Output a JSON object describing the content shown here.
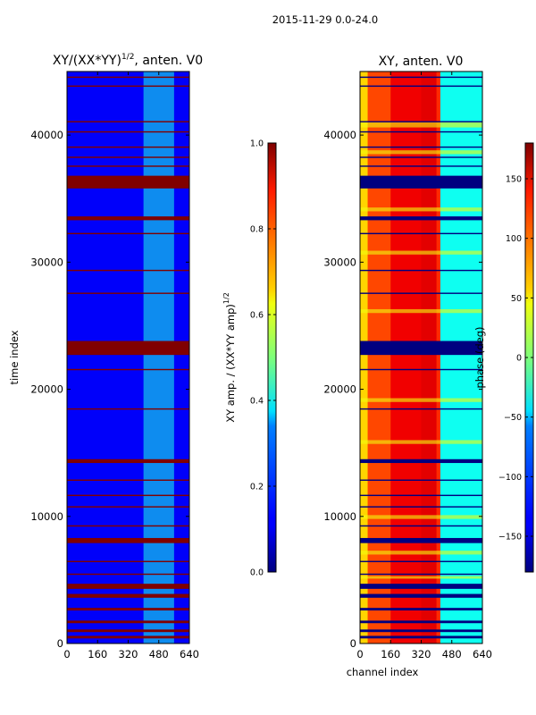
{
  "figure": {
    "suptitle": "2015-11-29 0.0-24.0"
  },
  "chart_data": [
    {
      "type": "heatmap",
      "title": "XY/(XX*YY)^{1/2}, anten. V0",
      "title_main": "XY/(XX*YY)",
      "title_sup": "1/2",
      "title_rest": ", anten. V0",
      "xlabel": "",
      "ylabel": "time index",
      "xlim": [
        0,
        640
      ],
      "ylim": [
        0,
        45000
      ],
      "xticks": [
        0,
        160,
        320,
        480,
        640
      ],
      "yticks": [
        0,
        10000,
        20000,
        30000,
        40000
      ],
      "colormap": "jet",
      "colorbar": {
        "label": "XY amp. / (XX*YY amp)^{1/2}",
        "label_main": "XY amp. / (XX*YY amp)",
        "label_sup": "1/2",
        "vmin": 0.0,
        "vmax": 1.0,
        "ticks": [
          0.0,
          0.2,
          0.4,
          0.6,
          0.8,
          1.0
        ],
        "tick_labels": [
          "0.0",
          "0.2",
          "0.4",
          "0.6",
          "0.8",
          "1.0"
        ]
      },
      "background_value": 0.12,
      "bright_band_channels": [
        400,
        560
      ],
      "bright_band_value": 0.4,
      "flagged_rows_value": 1.0,
      "flagged_time_ranges": [
        [
          35800,
          36800
        ],
        [
          33300,
          33600
        ],
        [
          22700,
          23800
        ],
        [
          14200,
          14500
        ],
        [
          7900,
          8300
        ],
        [
          4300,
          4700
        ],
        [
          3600,
          3900
        ],
        [
          2600,
          2800
        ],
        [
          1600,
          1800
        ],
        [
          900,
          1100
        ],
        [
          400,
          600
        ],
        [
          44500,
          44600
        ],
        [
          43800,
          43900
        ],
        [
          41000,
          41100
        ],
        [
          40200,
          40300
        ],
        [
          39000,
          39100
        ],
        [
          38200,
          38300
        ],
        [
          37500,
          37600
        ],
        [
          32200,
          32300
        ],
        [
          29300,
          29400
        ],
        [
          27500,
          27600
        ],
        [
          21500,
          21600
        ],
        [
          18400,
          18500
        ],
        [
          12800,
          12900
        ],
        [
          11600,
          11700
        ],
        [
          10700,
          10800
        ],
        [
          9200,
          9300
        ],
        [
          6400,
          6500
        ],
        [
          5400,
          5500
        ]
      ]
    },
    {
      "type": "heatmap",
      "title": "XY, anten. V0",
      "xlabel": "channel index",
      "ylabel": "",
      "xlim": [
        0,
        640
      ],
      "ylim": [
        0,
        45000
      ],
      "xticks": [
        0,
        160,
        320,
        480,
        640
      ],
      "yticks": [
        0,
        10000,
        20000,
        30000,
        40000
      ],
      "colormap": "jet",
      "colorbar": {
        "label": "phase (deg)",
        "vmin": -180,
        "vmax": 180,
        "ticks": [
          -150,
          -100,
          -50,
          0,
          50,
          100,
          150
        ],
        "tick_labels": [
          "−150",
          "−100",
          "−50",
          "0",
          "50",
          "100",
          "150"
        ]
      },
      "phase_profile": [
        {
          "channel": 0,
          "deg": 60
        },
        {
          "channel": 40,
          "deg": 110
        },
        {
          "channel": 160,
          "deg": 140
        },
        {
          "channel": 320,
          "deg": 145
        },
        {
          "channel": 400,
          "deg": 120
        },
        {
          "channel": 420,
          "deg": -40
        },
        {
          "channel": 640,
          "deg": -60
        }
      ],
      "flagged_rows_value_deg": -180,
      "flagged_time_ranges": [
        [
          35800,
          36800
        ],
        [
          33300,
          33600
        ],
        [
          22700,
          23800
        ],
        [
          14200,
          14500
        ],
        [
          7900,
          8300
        ],
        [
          4300,
          4700
        ],
        [
          3600,
          3900
        ],
        [
          2600,
          2800
        ],
        [
          1600,
          1800
        ],
        [
          900,
          1100
        ],
        [
          400,
          600
        ],
        [
          44500,
          44600
        ],
        [
          43800,
          43900
        ],
        [
          41000,
          41100
        ],
        [
          40200,
          40300
        ],
        [
          39000,
          39100
        ],
        [
          38200,
          38300
        ],
        [
          37500,
          37600
        ],
        [
          32200,
          32300
        ],
        [
          29300,
          29400
        ],
        [
          27500,
          27600
        ],
        [
          21500,
          21600
        ],
        [
          18400,
          18500
        ],
        [
          12800,
          12900
        ],
        [
          11600,
          11700
        ],
        [
          10700,
          10800
        ],
        [
          9200,
          9300
        ],
        [
          6400,
          6500
        ],
        [
          5400,
          5500
        ]
      ],
      "band_time_ranges": [
        [
          40600,
          41000
        ],
        [
          38500,
          38800
        ],
        [
          34000,
          34300
        ],
        [
          30600,
          30900
        ],
        [
          26000,
          26300
        ],
        [
          19000,
          19300
        ],
        [
          15700,
          16000
        ],
        [
          9800,
          10100
        ],
        [
          7000,
          7300
        ],
        [
          5100,
          5300
        ]
      ]
    }
  ]
}
